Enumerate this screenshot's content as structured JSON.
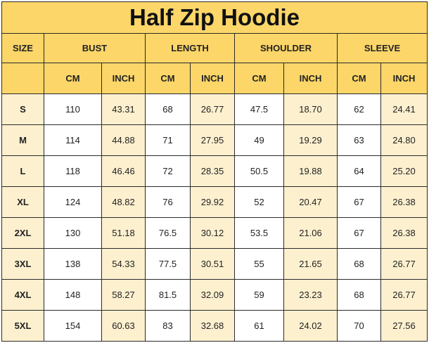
{
  "title": "Half Zip Hoodie",
  "headers": {
    "size": "SIZE",
    "groups": [
      "BUST",
      "LENGTH",
      "SHOULDER",
      "SLEEVE"
    ],
    "units": [
      "CM",
      "INCH"
    ]
  },
  "colors": {
    "header": "#fcd669",
    "accent_cell": "#fdf0cf"
  },
  "rows": [
    {
      "size": "S",
      "values": [
        "110",
        "43.31",
        "68",
        "26.77",
        "47.5",
        "18.70",
        "62",
        "24.41"
      ]
    },
    {
      "size": "M",
      "values": [
        "114",
        "44.88",
        "71",
        "27.95",
        "49",
        "19.29",
        "63",
        "24.80"
      ]
    },
    {
      "size": "L",
      "values": [
        "118",
        "46.46",
        "72",
        "28.35",
        "50.5",
        "19.88",
        "64",
        "25.20"
      ]
    },
    {
      "size": "XL",
      "values": [
        "124",
        "48.82",
        "76",
        "29.92",
        "52",
        "20.47",
        "67",
        "26.38"
      ]
    },
    {
      "size": "2XL",
      "values": [
        "130",
        "51.18",
        "76.5",
        "30.12",
        "53.5",
        "21.06",
        "67",
        "26.38"
      ]
    },
    {
      "size": "3XL",
      "values": [
        "138",
        "54.33",
        "77.5",
        "30.51",
        "55",
        "21.65",
        "68",
        "26.77"
      ]
    },
    {
      "size": "4XL",
      "values": [
        "148",
        "58.27",
        "81.5",
        "32.09",
        "59",
        "23.23",
        "68",
        "26.77"
      ]
    },
    {
      "size": "5XL",
      "values": [
        "154",
        "60.63",
        "83",
        "32.68",
        "61",
        "24.02",
        "70",
        "27.56"
      ]
    }
  ]
}
